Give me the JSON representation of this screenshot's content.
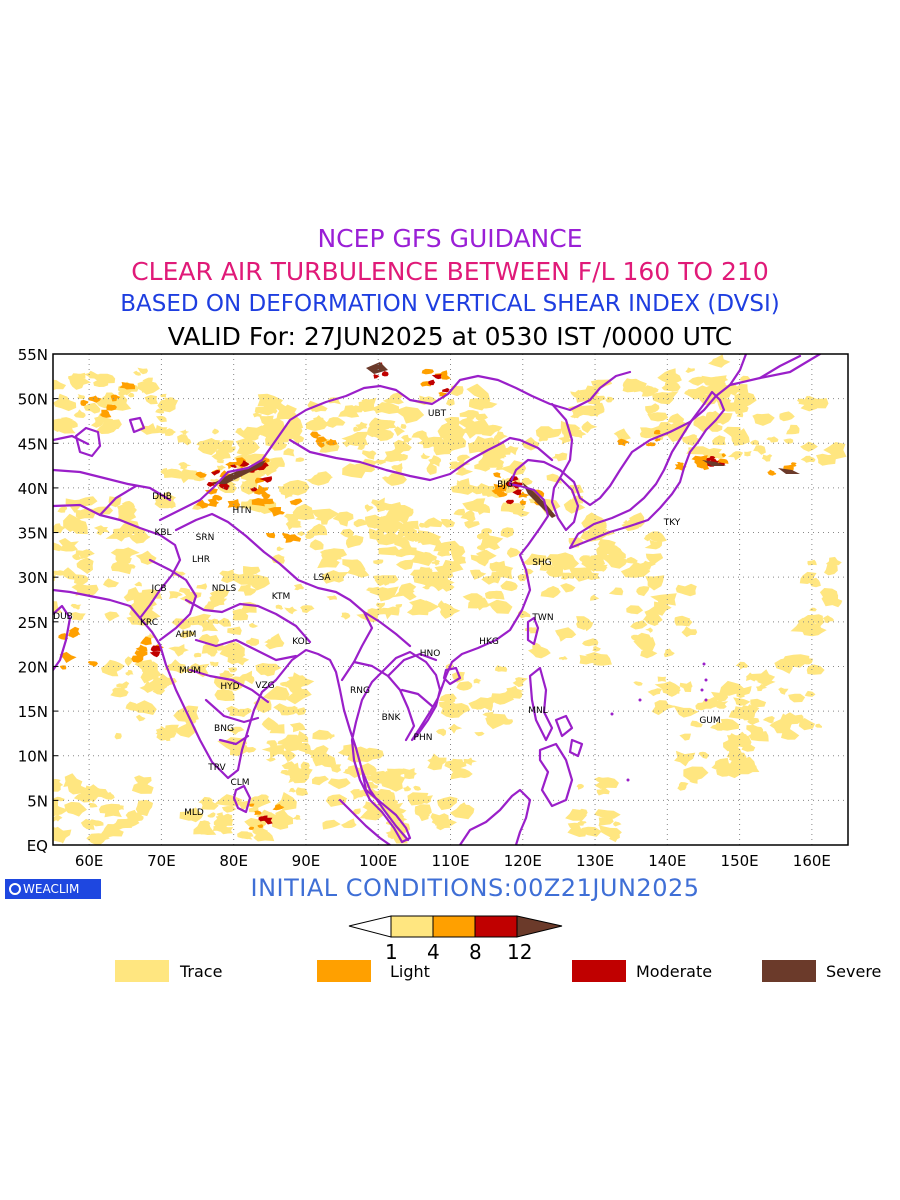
{
  "titles": {
    "line1": {
      "text": "NCEP GFS GUIDANCE",
      "color": "#9a1fd6"
    },
    "line2": {
      "text": "CLEAR AIR TURBULENCE BETWEEN F/L 160 TO 210",
      "color": "#e01a78"
    },
    "line3": {
      "text": "BASED ON DEFORMATION VERTICAL SHEAR INDEX (DVSI)",
      "color": "#1e3ee0"
    },
    "line4": {
      "text": "VALID For: 27JUN2025 at 0530 IST /0000 UTC",
      "color": "#000000"
    }
  },
  "axes": {
    "lat_labels": [
      "55N",
      "50N",
      "45N",
      "40N",
      "35N",
      "30N",
      "25N",
      "20N",
      "15N",
      "10N",
      "5N",
      "EQ"
    ],
    "lon_labels": [
      "60E",
      "70E",
      "80E",
      "90E",
      "100E",
      "110E",
      "120E",
      "130E",
      "140E",
      "150E",
      "160E"
    ]
  },
  "stations": [
    {
      "code": "UBT"
    },
    {
      "code": "BJG"
    },
    {
      "code": "DHB"
    },
    {
      "code": "HTN"
    },
    {
      "code": "TKY"
    },
    {
      "code": "KBL"
    },
    {
      "code": "SRN"
    },
    {
      "code": "LHR"
    },
    {
      "code": "SHG"
    },
    {
      "code": "LSA"
    },
    {
      "code": "JCB"
    },
    {
      "code": "NDLS"
    },
    {
      "code": "KTM"
    },
    {
      "code": "DUB"
    },
    {
      "code": "KRC"
    },
    {
      "code": "TWN"
    },
    {
      "code": "AHM"
    },
    {
      "code": "KOL"
    },
    {
      "code": "HKG"
    },
    {
      "code": "HNO"
    },
    {
      "code": "MUM"
    },
    {
      "code": "HYD"
    },
    {
      "code": "VZG"
    },
    {
      "code": "RNG"
    },
    {
      "code": "BNK"
    },
    {
      "code": "MNL"
    },
    {
      "code": "GUM"
    },
    {
      "code": "BNG"
    },
    {
      "code": "PHN"
    },
    {
      "code": "TRV"
    },
    {
      "code": "CLM"
    },
    {
      "code": "MLD"
    }
  ],
  "colors": {
    "trace": "#ffe680",
    "light": "#ffa000",
    "moderate": "#c00000",
    "severe": "#6b3a2a",
    "coast": "#9a1fc9"
  },
  "colorbar": {
    "ticks": [
      "1",
      "4",
      "8",
      "12"
    ]
  },
  "legend": [
    {
      "label": "Trace",
      "color": "#ffe680"
    },
    {
      "label": "Light",
      "color": "#ffa000"
    },
    {
      "label": "Moderate",
      "color": "#c00000"
    },
    {
      "label": "Severe",
      "color": "#6b3a2a"
    }
  ],
  "initial_conditions": "INITIAL CONDITIONS:00Z21JUN2025",
  "logo_text": "WEACLIM"
}
